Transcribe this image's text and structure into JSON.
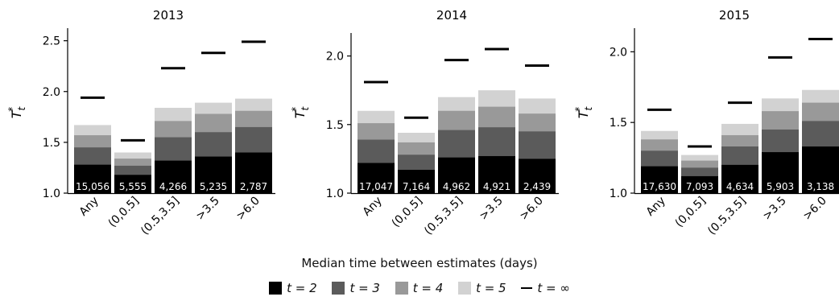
{
  "chart_data": [
    {
      "type": "bar",
      "title": "2013",
      "ylabel": "T",
      "ylabel_sub": "t",
      "ylabel_sup": "*",
      "ylim": [
        1.0,
        2.6
      ],
      "yticks": [
        "1.0",
        "1.5",
        "2.0",
        "2.5"
      ],
      "categories": [
        "Any",
        "(0,0.5]",
        "(0.5,3.5]",
        ">3.5",
        ">6.0"
      ],
      "counts": [
        "15,056",
        "5,555",
        "4,266",
        "5,235",
        "2,787"
      ],
      "series": [
        {
          "name": "t = 2",
          "values": [
            1.28,
            1.18,
            1.32,
            1.36,
            1.4
          ]
        },
        {
          "name": "t = 3",
          "values": [
            1.45,
            1.27,
            1.55,
            1.6,
            1.65
          ]
        },
        {
          "name": "t = 4",
          "values": [
            1.57,
            1.34,
            1.71,
            1.78,
            1.81
          ]
        },
        {
          "name": "t = 5",
          "values": [
            1.67,
            1.4,
            1.84,
            1.89,
            1.93
          ]
        },
        {
          "name": "t = ∞",
          "values": [
            1.94,
            1.52,
            2.23,
            2.38,
            2.49
          ]
        }
      ]
    },
    {
      "type": "bar",
      "title": "2014",
      "ylabel": "T",
      "ylabel_sub": "t",
      "ylabel_sup": "*",
      "ylim": [
        1.0,
        2.15
      ],
      "yticks": [
        "1.0",
        "1.5",
        "2.0"
      ],
      "categories": [
        "Any",
        "(0,0.5]",
        "(0.5,3.5]",
        ">3.5",
        ">6.0"
      ],
      "counts": [
        "17,047",
        "7,164",
        "4,962",
        "4,921",
        "2,439"
      ],
      "series": [
        {
          "name": "t = 2",
          "values": [
            1.22,
            1.17,
            1.26,
            1.27,
            1.25
          ]
        },
        {
          "name": "t = 3",
          "values": [
            1.39,
            1.28,
            1.46,
            1.48,
            1.45
          ]
        },
        {
          "name": "t = 4",
          "values": [
            1.51,
            1.37,
            1.6,
            1.63,
            1.58
          ]
        },
        {
          "name": "t = 5",
          "values": [
            1.6,
            1.44,
            1.7,
            1.75,
            1.69
          ]
        },
        {
          "name": "t = ∞",
          "values": [
            1.81,
            1.55,
            1.97,
            2.05,
            1.93
          ]
        }
      ]
    },
    {
      "type": "bar",
      "title": "2015",
      "ylabel": "T",
      "ylabel_sub": "t",
      "ylabel_sup": "*",
      "ylim": [
        1.0,
        2.15
      ],
      "yticks": [
        "1.0",
        "1.5",
        "2.0"
      ],
      "categories": [
        "Any",
        "(0,0.5]",
        "(0.5,3.5]",
        ">3.5",
        ">6.0"
      ],
      "counts": [
        "17,630",
        "7,093",
        "4,634",
        "5,903",
        "3,138"
      ],
      "series": [
        {
          "name": "t = 2",
          "values": [
            1.19,
            1.12,
            1.2,
            1.29,
            1.33
          ]
        },
        {
          "name": "t = 3",
          "values": [
            1.3,
            1.18,
            1.33,
            1.45,
            1.51
          ]
        },
        {
          "name": "t = 4",
          "values": [
            1.38,
            1.23,
            1.41,
            1.58,
            1.64
          ]
        },
        {
          "name": "t = 5",
          "values": [
            1.44,
            1.27,
            1.49,
            1.67,
            1.73
          ]
        },
        {
          "name": "t = ∞",
          "values": [
            1.59,
            1.33,
            1.64,
            1.96,
            2.09
          ]
        }
      ]
    }
  ],
  "xlabel": "Median time between estimates (days)",
  "legend": [
    {
      "label": "t = 2",
      "color": "#000000",
      "kind": "box"
    },
    {
      "label": "t = 3",
      "color": "#5b5b5b",
      "kind": "box"
    },
    {
      "label": "t = 4",
      "color": "#999999",
      "kind": "box"
    },
    {
      "label": "t = 5",
      "color": "#d2d2d2",
      "kind": "box"
    },
    {
      "label": "t = ∞",
      "color": "#000000",
      "kind": "line"
    }
  ],
  "colors": {
    "t2": "#000000",
    "t3": "#5b5b5b",
    "t4": "#999999",
    "t5": "#d2d2d2",
    "inf": "#000000"
  }
}
